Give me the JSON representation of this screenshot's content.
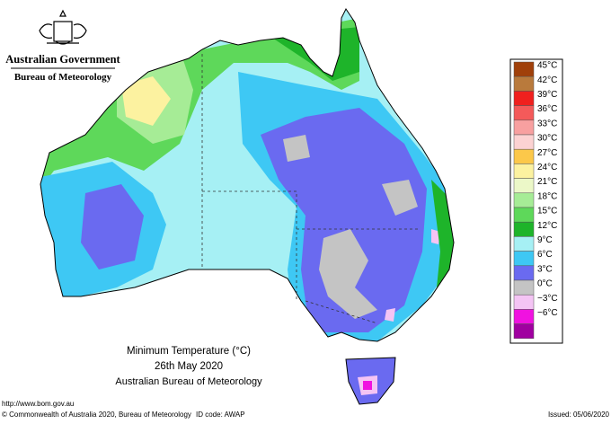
{
  "header": {
    "title": "Australian Government",
    "subtitle": "Bureau of Meteorology"
  },
  "legend": {
    "items": [
      {
        "label": "45°C",
        "color": "#a0400a"
      },
      {
        "label": "42°C",
        "color": "#b97a3c"
      },
      {
        "label": "39°C",
        "color": "#f0201e"
      },
      {
        "label": "36°C",
        "color": "#f45a5a"
      },
      {
        "label": "33°C",
        "color": "#f8a0a0"
      },
      {
        "label": "30°C",
        "color": "#fcd2d2"
      },
      {
        "label": "27°C",
        "color": "#fcc84a"
      },
      {
        "label": "24°C",
        "color": "#fcf2a0"
      },
      {
        "label": "21°C",
        "color": "#ecf8c8"
      },
      {
        "label": "18°C",
        "color": "#a6ec96"
      },
      {
        "label": "15°C",
        "color": "#5ed85a"
      },
      {
        "label": "12°C",
        "color": "#1eb42a"
      },
      {
        "label": "9°C",
        "color": "#a6f0f4"
      },
      {
        "label": "6°C",
        "color": "#3ec8f4"
      },
      {
        "label": "3°C",
        "color": "#6a6af0"
      },
      {
        "label": "0°C",
        "color": "#c4c4c4"
      },
      {
        "label": "−3°C",
        "color": "#f4c4f4"
      },
      {
        "label": "−6°C",
        "color": "#f012e0"
      },
      {
        "label": "",
        "color": "#a000a0"
      }
    ]
  },
  "caption": {
    "title": "Minimum Temperature (°C)",
    "date": "26th May 2020",
    "source": "Australian Bureau of Meteorology"
  },
  "footer": {
    "url": "http://www.bom.gov.au",
    "copyright": "© Commonwealth of Australia 2020, Bureau of Meteorology",
    "id_code": "ID code: AWAP",
    "issued": "Issued: 05/06/2020"
  }
}
